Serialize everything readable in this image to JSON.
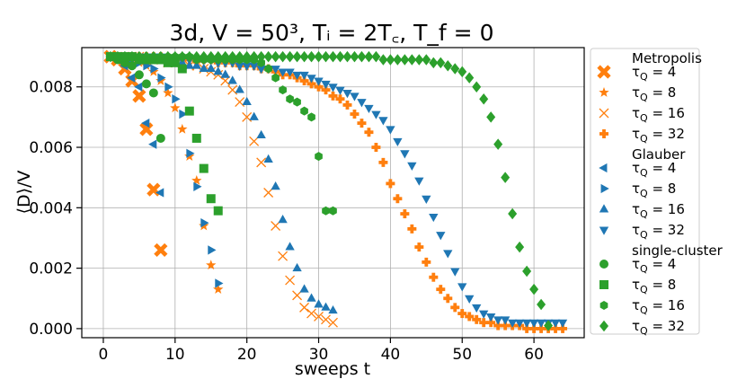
{
  "chart_data": {
    "type": "scatter",
    "title": "3d, V = 50³, Tᵢ = 2T꜀, T_f = 0",
    "xlabel": "sweeps t",
    "ylabel": "⟨D⟩/V",
    "xlim": [
      -3,
      67
    ],
    "ylim": [
      -0.0003,
      0.0093
    ],
    "xticks": [
      0,
      10,
      20,
      30,
      40,
      50,
      60
    ],
    "yticks": [
      0.0,
      0.002,
      0.004,
      0.006,
      0.008
    ],
    "ytick_labels": [
      "0.000",
      "0.002",
      "0.004",
      "0.006",
      "0.008"
    ],
    "grid": true,
    "legend_position": "outside-right",
    "colors": {
      "Metropolis": "#ff7f0e",
      "Glauber": "#1f77b4",
      "single-cluster": "#2ca02c"
    },
    "series": [
      {
        "name": "τQ = 4",
        "group": "Metropolis",
        "marker": "x-filled",
        "x": [
          1,
          2,
          3,
          4,
          5,
          6,
          7,
          8
        ],
        "y": [
          0.009,
          0.0089,
          0.0086,
          0.0082,
          0.0077,
          0.0066,
          0.0046,
          0.0026
        ]
      },
      {
        "name": "τQ = 8",
        "group": "Metropolis",
        "marker": "star",
        "x": [
          1,
          2,
          3,
          4,
          5,
          6,
          7,
          8,
          9,
          10,
          11,
          12,
          13,
          14,
          15,
          16
        ],
        "y": [
          0.009,
          0.009,
          0.0089,
          0.0089,
          0.0088,
          0.0087,
          0.0085,
          0.0082,
          0.0078,
          0.0073,
          0.0066,
          0.0057,
          0.0049,
          0.0034,
          0.0021,
          0.0013
        ]
      },
      {
        "name": "τQ = 16",
        "group": "Metropolis",
        "marker": "x",
        "x": [
          1,
          2,
          3,
          4,
          5,
          6,
          7,
          8,
          9,
          10,
          11,
          12,
          13,
          14,
          15,
          16,
          17,
          18,
          19,
          20,
          21,
          22,
          23,
          24,
          25,
          26,
          27,
          28,
          29,
          30,
          31,
          32
        ],
        "y": [
          0.009,
          0.009,
          0.009,
          0.009,
          0.009,
          0.0089,
          0.0089,
          0.0089,
          0.0088,
          0.0088,
          0.0088,
          0.0087,
          0.0087,
          0.0086,
          0.0085,
          0.0084,
          0.0082,
          0.0079,
          0.0075,
          0.007,
          0.0062,
          0.0055,
          0.0045,
          0.0034,
          0.0024,
          0.0016,
          0.0011,
          0.0007,
          0.0005,
          0.0004,
          0.0003,
          0.0002
        ]
      },
      {
        "name": "τQ = 32",
        "group": "Metropolis",
        "marker": "plus-filled",
        "x": [
          1,
          2,
          3,
          4,
          5,
          6,
          7,
          8,
          9,
          10,
          11,
          12,
          13,
          14,
          15,
          16,
          17,
          18,
          19,
          20,
          21,
          22,
          23,
          24,
          25,
          26,
          27,
          28,
          29,
          30,
          31,
          32,
          33,
          34,
          35,
          36,
          37,
          38,
          39,
          40,
          41,
          42,
          43,
          44,
          45,
          46,
          47,
          48,
          49,
          50,
          51,
          52,
          53,
          54,
          55,
          56,
          57,
          58,
          59,
          60,
          61,
          62,
          63,
          64
        ],
        "y": [
          0.009,
          0.009,
          0.009,
          0.009,
          0.009,
          0.009,
          0.009,
          0.009,
          0.0089,
          0.0089,
          0.0089,
          0.0089,
          0.0089,
          0.0089,
          0.0089,
          0.0088,
          0.0088,
          0.0088,
          0.0087,
          0.0087,
          0.0087,
          0.0086,
          0.0086,
          0.0085,
          0.0084,
          0.0084,
          0.0083,
          0.0082,
          0.0081,
          0.008,
          0.0079,
          0.0077,
          0.0076,
          0.0074,
          0.0071,
          0.0068,
          0.0065,
          0.006,
          0.0055,
          0.0048,
          0.0043,
          0.0038,
          0.0033,
          0.0027,
          0.0022,
          0.0017,
          0.0013,
          0.001,
          0.0007,
          0.0005,
          0.0004,
          0.0003,
          0.0002,
          0.0002,
          0.0001,
          0.0001,
          0.0001,
          0.0001,
          0.0,
          0.0,
          0.0,
          0.0,
          0.0,
          0.0
        ]
      },
      {
        "name": "τQ = 4",
        "group": "Glauber",
        "marker": "triangle-left",
        "x": [
          1,
          2,
          3,
          4,
          5,
          6,
          7,
          8
        ],
        "y": [
          0.009,
          0.0089,
          0.0087,
          0.0083,
          0.008,
          0.0068,
          0.0061,
          0.0045
        ]
      },
      {
        "name": "τQ = 8",
        "group": "Glauber",
        "marker": "triangle-right",
        "x": [
          1,
          2,
          3,
          4,
          5,
          6,
          7,
          8,
          9,
          10,
          11,
          12,
          13,
          14,
          15,
          16
        ],
        "y": [
          0.009,
          0.009,
          0.0089,
          0.0089,
          0.0088,
          0.0087,
          0.0086,
          0.0083,
          0.008,
          0.0076,
          0.0071,
          0.0058,
          0.0047,
          0.0035,
          0.0026,
          0.0015
        ]
      },
      {
        "name": "τQ = 16",
        "group": "Glauber",
        "marker": "triangle-up",
        "x": [
          1,
          2,
          3,
          4,
          5,
          6,
          7,
          8,
          9,
          10,
          11,
          12,
          13,
          14,
          15,
          16,
          17,
          18,
          19,
          20,
          21,
          22,
          23,
          24,
          25,
          26,
          27,
          28,
          29,
          30,
          31,
          32
        ],
        "y": [
          0.009,
          0.009,
          0.009,
          0.009,
          0.0089,
          0.0089,
          0.0089,
          0.0089,
          0.0088,
          0.0088,
          0.0088,
          0.0087,
          0.0087,
          0.0086,
          0.0086,
          0.0085,
          0.0084,
          0.0082,
          0.0079,
          0.0075,
          0.007,
          0.0064,
          0.0056,
          0.0047,
          0.0036,
          0.0027,
          0.002,
          0.0013,
          0.001,
          0.0008,
          0.0007,
          0.0006
        ]
      },
      {
        "name": "τQ = 32",
        "group": "Glauber",
        "marker": "triangle-down",
        "x": [
          1,
          2,
          3,
          4,
          5,
          6,
          7,
          8,
          9,
          10,
          11,
          12,
          13,
          14,
          15,
          16,
          17,
          18,
          19,
          20,
          21,
          22,
          23,
          24,
          25,
          26,
          27,
          28,
          29,
          30,
          31,
          32,
          33,
          34,
          35,
          36,
          37,
          38,
          39,
          40,
          41,
          42,
          43,
          44,
          45,
          46,
          47,
          48,
          49,
          50,
          51,
          52,
          53,
          54,
          55,
          56,
          57,
          58,
          59,
          60,
          61,
          62,
          63,
          64
        ],
        "y": [
          0.009,
          0.009,
          0.009,
          0.009,
          0.009,
          0.009,
          0.009,
          0.009,
          0.0089,
          0.0089,
          0.0089,
          0.0089,
          0.0089,
          0.0089,
          0.0089,
          0.0088,
          0.0088,
          0.0088,
          0.0087,
          0.0087,
          0.0087,
          0.0086,
          0.0086,
          0.0086,
          0.0085,
          0.0085,
          0.0084,
          0.0084,
          0.0083,
          0.0082,
          0.0081,
          0.008,
          0.0079,
          0.0078,
          0.0077,
          0.0075,
          0.0073,
          0.0071,
          0.0069,
          0.0066,
          0.0062,
          0.0058,
          0.0054,
          0.0049,
          0.0043,
          0.0037,
          0.0031,
          0.0025,
          0.0019,
          0.0014,
          0.001,
          0.0007,
          0.0005,
          0.0004,
          0.0003,
          0.0003,
          0.0002,
          0.0002,
          0.0002,
          0.0002,
          0.0002,
          0.0002,
          0.0002,
          0.0002
        ]
      },
      {
        "name": "τQ = 4",
        "group": "single-cluster",
        "marker": "circle",
        "x": [
          1,
          2,
          3,
          4,
          5,
          6,
          7,
          8
        ],
        "y": [
          0.009,
          0.0089,
          0.0088,
          0.0087,
          0.0084,
          0.0081,
          0.0078,
          0.0063
        ]
      },
      {
        "name": "τQ = 8",
        "group": "single-cluster",
        "marker": "square",
        "x": [
          1,
          2,
          3,
          4,
          5,
          6,
          7,
          8,
          9,
          10,
          11,
          12,
          13,
          14,
          15,
          16
        ],
        "y": [
          0.009,
          0.009,
          0.009,
          0.009,
          0.0089,
          0.0089,
          0.0089,
          0.0089,
          0.0088,
          0.0088,
          0.0086,
          0.0072,
          0.0063,
          0.0053,
          0.0043,
          0.0039
        ]
      },
      {
        "name": "τQ = 16",
        "group": "single-cluster",
        "marker": "hexagon",
        "x": [
          1,
          2,
          3,
          4,
          5,
          6,
          7,
          8,
          9,
          10,
          11,
          12,
          13,
          14,
          15,
          16,
          17,
          18,
          19,
          20,
          21,
          22,
          23,
          24,
          25,
          26,
          27,
          28,
          29,
          30,
          31,
          32
        ],
        "y": [
          0.009,
          0.009,
          0.009,
          0.009,
          0.009,
          0.009,
          0.009,
          0.009,
          0.009,
          0.009,
          0.009,
          0.009,
          0.0089,
          0.0089,
          0.0089,
          0.0089,
          0.0089,
          0.0089,
          0.0089,
          0.0089,
          0.0089,
          0.0088,
          0.0086,
          0.0083,
          0.0079,
          0.0076,
          0.0075,
          0.0072,
          0.007,
          0.0057,
          0.0039,
          0.0039
        ]
      },
      {
        "name": "τQ = 32",
        "group": "single-cluster",
        "marker": "diamond",
        "x": [
          1,
          2,
          3,
          4,
          5,
          6,
          7,
          8,
          9,
          10,
          11,
          12,
          13,
          14,
          15,
          16,
          17,
          18,
          19,
          20,
          21,
          22,
          23,
          24,
          25,
          26,
          27,
          28,
          29,
          30,
          31,
          32,
          33,
          34,
          35,
          36,
          37,
          38,
          39,
          40,
          41,
          42,
          43,
          44,
          45,
          46,
          47,
          48,
          49,
          50,
          51,
          52,
          53,
          54,
          55,
          56,
          57,
          58,
          59,
          60,
          61,
          62
        ],
        "y": [
          0.009,
          0.009,
          0.009,
          0.009,
          0.009,
          0.009,
          0.009,
          0.009,
          0.009,
          0.009,
          0.009,
          0.009,
          0.009,
          0.009,
          0.009,
          0.009,
          0.009,
          0.009,
          0.009,
          0.009,
          0.009,
          0.009,
          0.009,
          0.009,
          0.009,
          0.009,
          0.009,
          0.009,
          0.009,
          0.009,
          0.009,
          0.009,
          0.009,
          0.009,
          0.009,
          0.009,
          0.009,
          0.009,
          0.0089,
          0.0089,
          0.0089,
          0.0089,
          0.0089,
          0.0089,
          0.0089,
          0.0088,
          0.0088,
          0.0087,
          0.0086,
          0.0085,
          0.0083,
          0.008,
          0.0076,
          0.007,
          0.0061,
          0.005,
          0.0038,
          0.0027,
          0.0019,
          0.0013,
          0.0008,
          0.0001
        ]
      }
    ],
    "legend": [
      {
        "type": "header",
        "text": "Metropolis"
      },
      {
        "type": "entry",
        "series": 0,
        "label_prefix": "τ",
        "label_sub": "Q",
        "label_suffix": " = 4"
      },
      {
        "type": "entry",
        "series": 1,
        "label_prefix": "τ",
        "label_sub": "Q",
        "label_suffix": " = 8"
      },
      {
        "type": "entry",
        "series": 2,
        "label_prefix": "τ",
        "label_sub": "Q",
        "label_suffix": " = 16"
      },
      {
        "type": "entry",
        "series": 3,
        "label_prefix": "τ",
        "label_sub": "Q",
        "label_suffix": " = 32"
      },
      {
        "type": "header",
        "text": "Glauber"
      },
      {
        "type": "entry",
        "series": 4,
        "label_prefix": "τ",
        "label_sub": "Q",
        "label_suffix": " = 4"
      },
      {
        "type": "entry",
        "series": 5,
        "label_prefix": "τ",
        "label_sub": "Q",
        "label_suffix": " = 8"
      },
      {
        "type": "entry",
        "series": 6,
        "label_prefix": "τ",
        "label_sub": "Q",
        "label_suffix": " = 16"
      },
      {
        "type": "entry",
        "series": 7,
        "label_prefix": "τ",
        "label_sub": "Q",
        "label_suffix": " = 32"
      },
      {
        "type": "header",
        "text": "single-cluster"
      },
      {
        "type": "entry",
        "series": 8,
        "label_prefix": "τ",
        "label_sub": "Q",
        "label_suffix": " = 4"
      },
      {
        "type": "entry",
        "series": 9,
        "label_prefix": "τ",
        "label_sub": "Q",
        "label_suffix": " = 8"
      },
      {
        "type": "entry",
        "series": 10,
        "label_prefix": "τ",
        "label_sub": "Q",
        "label_suffix": " = 16"
      },
      {
        "type": "entry",
        "series": 11,
        "label_prefix": "τ",
        "label_sub": "Q",
        "label_suffix": " = 32"
      }
    ]
  }
}
